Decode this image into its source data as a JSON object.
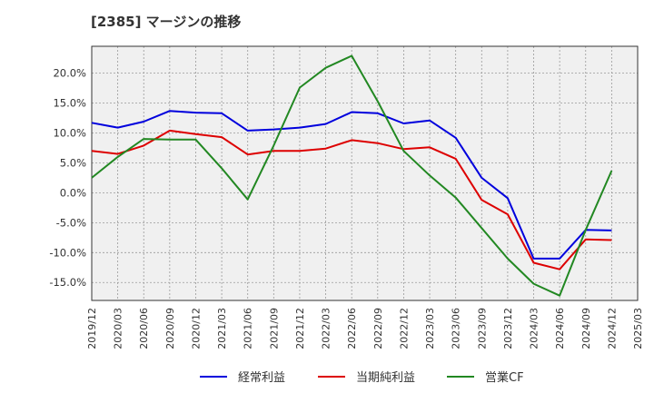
{
  "chart_data": {
    "type": "line",
    "title": "[2385]  マージンの推移",
    "xlabel": "",
    "ylabel": "",
    "categories": [
      "2019/12",
      "2020/03",
      "2020/06",
      "2020/09",
      "2020/12",
      "2021/03",
      "2021/06",
      "2021/09",
      "2021/12",
      "2022/03",
      "2022/06",
      "2022/09",
      "2022/12",
      "2023/03",
      "2023/06",
      "2023/09",
      "2023/12",
      "2024/03",
      "2024/06",
      "2024/09",
      "2024/12",
      "2025/03"
    ],
    "ylim": [
      -18,
      24.5
    ],
    "yticks": [
      20,
      15,
      10,
      5,
      0,
      -5,
      -10,
      -15
    ],
    "ytick_labels": [
      "20.0%",
      "15.0%",
      "10.0%",
      "5.0%",
      "0.0%",
      "-5.0%",
      "-10.0%",
      "-15.0%"
    ],
    "grid": true,
    "legend_position": "bottom",
    "series": [
      {
        "name": "経常利益",
        "color": "#0000dd",
        "values": [
          11.7,
          10.9,
          11.9,
          13.7,
          13.4,
          13.3,
          10.4,
          10.6,
          10.9,
          11.5,
          13.5,
          13.3,
          11.6,
          12.1,
          9.2,
          2.5,
          -0.9,
          -11.0,
          -11.0,
          -6.2,
          -6.3,
          null
        ]
      },
      {
        "name": "当期純利益",
        "color": "#dd0000",
        "values": [
          7.0,
          6.5,
          7.9,
          10.4,
          9.8,
          9.3,
          6.4,
          7.0,
          7.0,
          7.4,
          8.8,
          8.3,
          7.3,
          7.6,
          5.7,
          -1.2,
          -3.6,
          -11.7,
          -12.8,
          -7.8,
          -7.9,
          null
        ]
      },
      {
        "name": "営業CF",
        "color": "#228822",
        "values": [
          2.5,
          6.0,
          9.0,
          8.9,
          8.9,
          4.1,
          -1.1,
          7.9,
          17.6,
          20.9,
          22.9,
          15.3,
          7.0,
          2.9,
          -0.8,
          -5.9,
          -11.0,
          -15.2,
          -17.2,
          -6.2,
          3.7,
          null
        ]
      }
    ]
  }
}
